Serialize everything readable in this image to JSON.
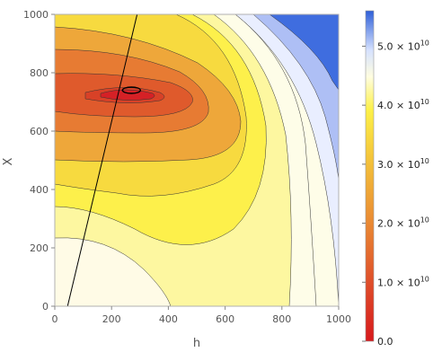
{
  "chart_data": {
    "type": "heatmap",
    "subtype": "filled-contour",
    "xlabel": "h",
    "ylabel": "X",
    "xlim": [
      0,
      1000
    ],
    "ylim": [
      0,
      1000
    ],
    "x_ticks": [
      0,
      200,
      400,
      600,
      800,
      1000
    ],
    "y_ticks": [
      0,
      200,
      400,
      600,
      800,
      1000
    ],
    "grid": false,
    "colorbar": {
      "position": "right",
      "range": [
        0,
        56000000000.0
      ],
      "ticks": [
        {
          "value": 0,
          "label": "0.0",
          "exponent": ""
        },
        {
          "value": 10000000000.0,
          "label": "1.0 × 10",
          "exponent": "10"
        },
        {
          "value": 20000000000.0,
          "label": "2.0 × 10",
          "exponent": "10"
        },
        {
          "value": 30000000000.0,
          "label": "3.0 × 10",
          "exponent": "10"
        },
        {
          "value": 40000000000.0,
          "label": "4.0 × 10",
          "exponent": "10"
        },
        {
          "value": 50000000000.0,
          "label": "5.0 × 10",
          "exponent": "10"
        }
      ],
      "colors": [
        "#d7191c",
        "#df4f2a",
        "#ea8a33",
        "#f4c33a",
        "#fdf148",
        "#fffde0",
        "#d6e2ff",
        "#2e5fd8"
      ]
    },
    "contour_levels": [
      {
        "level": 1,
        "color": "#d52126",
        "region_label": "innermost minimum around (270, 740)"
      },
      {
        "level": 2,
        "color": "#d84127",
        "region_label": "core"
      },
      {
        "level": 3,
        "color": "#df5a2c",
        "region_label": "inner"
      },
      {
        "level": 4,
        "color": "#e77b33",
        "region_label": "middle"
      },
      {
        "level": 5,
        "color": "#eea73a",
        "region_label": "outer orange"
      },
      {
        "level": 6,
        "color": "#f7da3f",
        "region_label": "yellow"
      },
      {
        "level": 7,
        "color": "#fdf04b",
        "region_label": "bright yellow"
      },
      {
        "level": 8,
        "color": "#fdf7a0",
        "region_label": "light yellow"
      },
      {
        "level": 9,
        "color": "#fefde8",
        "region_label": "pale"
      },
      {
        "level": 10,
        "color": "#e9eeff",
        "region_label": "very light blue"
      },
      {
        "level": 11,
        "color": "#aebff5",
        "region_label": "light blue"
      },
      {
        "level": 12,
        "color": "#3f6ddf",
        "region_label": "blue"
      }
    ],
    "minimum_point": {
      "h": 270,
      "X": 740
    },
    "line": {
      "x": [
        45,
        290
      ],
      "y": [
        0,
        1000
      ]
    }
  }
}
